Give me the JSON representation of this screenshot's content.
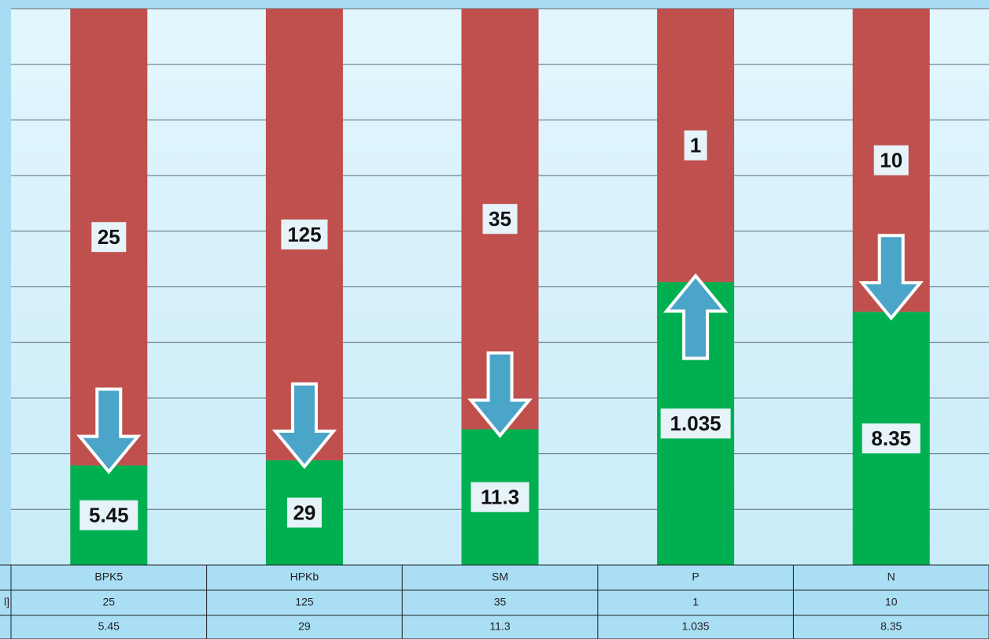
{
  "chart_data": {
    "type": "bar",
    "stacking": "percent",
    "categories": [
      "BPK5",
      "HPKb",
      "SM",
      "P",
      "N"
    ],
    "series": [
      {
        "name": null,
        "color": "#00b050",
        "values": [
          5.45,
          29,
          11.3,
          1.035,
          8.35
        ]
      },
      {
        "name": "l]",
        "color": "#c0504d",
        "values": [
          25,
          125,
          35,
          1,
          10
        ]
      }
    ],
    "ylim": [
      0,
      100
    ],
    "yticks": [
      0,
      10,
      20,
      30,
      40,
      50,
      60,
      70,
      80,
      90,
      100
    ],
    "grid": true,
    "arrows": [
      "down",
      "down",
      "down",
      "up",
      "down"
    ]
  }
}
